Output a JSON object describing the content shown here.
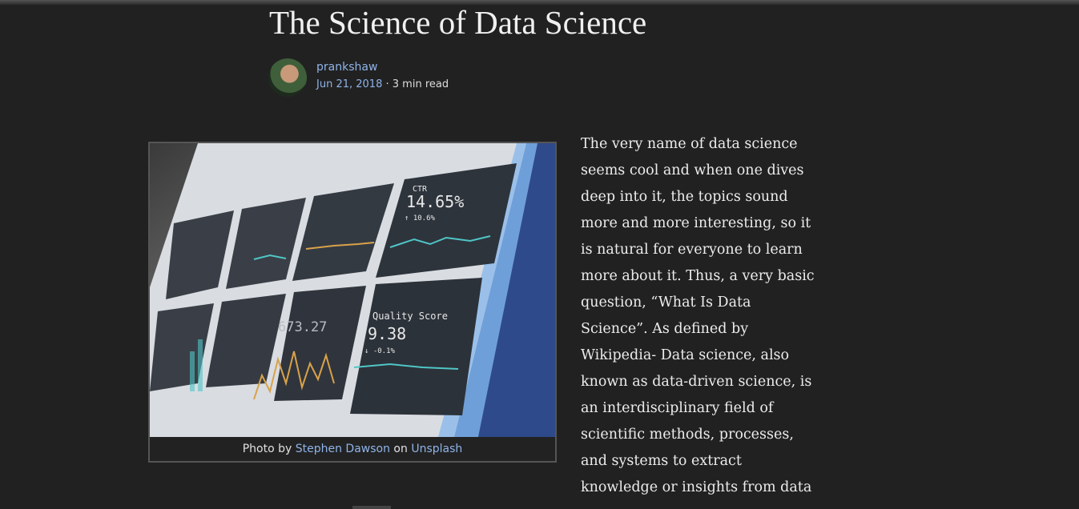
{
  "header": {
    "title": "The Science of Data Science",
    "author": "prankshaw",
    "date": "Jun 21, 2018",
    "separator": "·",
    "read_time": "3 min read"
  },
  "figure": {
    "photo_texts": {
      "ctr_label": "CTR",
      "ctr_value": "14.65%",
      "ctr_change": "↑ 10.6%",
      "quality_label": "Quality Score",
      "quality_value": "9.38",
      "quality_change": "↓ -0.1%",
      "cost_value": "673.27"
    },
    "caption": {
      "prefix": "Photo by",
      "photographer": "Stephen Dawson",
      "middle": "on",
      "site": "Unsplash"
    }
  },
  "article": {
    "paragraph_lines": [
      "The very name of data science",
      "seems cool and when one dives",
      "deep into it, the topics sound",
      "more and more interesting, so it",
      "is natural for everyone to learn",
      "more about it. Thus, a very basic",
      "question, “What Is Data",
      "Science”. As defined by",
      "Wikipedia- Data science, also",
      "known as data-driven science, is",
      "an interdisciplinary field of",
      "scientific methods, processes,",
      "and systems to extract",
      "knowledge or insights from data"
    ]
  }
}
